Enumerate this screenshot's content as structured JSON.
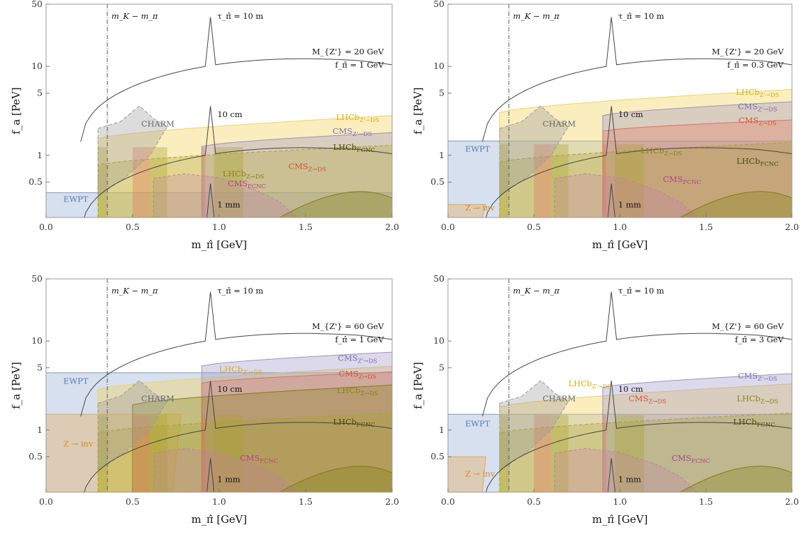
{
  "chart_data": [
    {
      "type": "area",
      "params": [
        "M_{Z'} = 20 GeV",
        "f_π̂ = 1 GeV"
      ],
      "xlabel": "m_π̂  [GeV]",
      "ylabel": "f_a  [PeV]",
      "xlim": [
        0,
        2
      ],
      "ylim": [
        0.2,
        50
      ],
      "yscale": "log",
      "xticks": [
        "0.0",
        "0.5",
        "1.0",
        "1.5",
        "2.0"
      ],
      "yticks": [
        "0.5",
        "1",
        "5",
        "10",
        "50"
      ],
      "annotations": {
        "mass_line": "m_K − m_π",
        "mass_line_x": 0.354,
        "tau_10m": "τ_π̂ = 10 m",
        "tau_10cm": "10 cm",
        "tau_1mm": "1 mm"
      },
      "regions": [
        {
          "name": "EWPT",
          "fa_max": 0.38,
          "label_x": 0.1,
          "label_y": 0.3
        },
        {
          "name": "CHARM",
          "label_x": 0.55,
          "label_y": 2.1
        },
        {
          "name": "LHCb_{Z'→DS}",
          "fa_max_at_2": 2.8,
          "label_x": 1.8,
          "label_y": 2.5
        },
        {
          "name": "CMS_{Z'→DS}",
          "fa_max_at_2": 1.8,
          "label_x": 1.77,
          "label_y": 1.75
        },
        {
          "name": "LHCb_{FCNC}",
          "fa_max_at_2": 1.3,
          "label_x": 1.78,
          "label_y": 1.15
        },
        {
          "name": "LHCb_{Z→DS}",
          "label_x": 1.02,
          "label_y": 0.58
        },
        {
          "name": "CMS_{Z→DS}",
          "label_x": 1.4,
          "label_y": 0.7
        },
        {
          "name": "CMS_{FCNC}",
          "label_x": 1.05,
          "label_y": 0.45
        }
      ]
    },
    {
      "type": "area",
      "params": [
        "M_{Z'} = 20 GeV",
        "f_π̂ = 0.3 GeV"
      ],
      "xlabel": "m_π̂  [GeV]",
      "ylabel": "f_a  [PeV]",
      "xlim": [
        0,
        2
      ],
      "ylim": [
        0.2,
        50
      ],
      "yscale": "log",
      "xticks": [
        "0.0",
        "0.5",
        "1.0",
        "1.5",
        "2.0"
      ],
      "yticks": [
        "0.5",
        "1",
        "5",
        "10",
        "50"
      ],
      "annotations": {
        "mass_line": "m_K − m_π",
        "mass_line_x": 0.354,
        "tau_10m": "τ_π̂ = 10 m",
        "tau_10cm": "10 cm",
        "tau_1mm": "1 mm"
      },
      "regions": [
        {
          "name": "EWPT",
          "fa_max": 1.45,
          "label_x": 0.1,
          "label_y": 1.1
        },
        {
          "name": "Z → inv",
          "fa_max": 0.28,
          "label_x": 0.1,
          "label_y": 0.24
        },
        {
          "name": "CHARM",
          "label_x": 0.55,
          "label_y": 2.1
        },
        {
          "name": "LHCb_{Z'→DS}",
          "fa_max_at_2": 5.5,
          "label_x": 1.8,
          "label_y": 4.8
        },
        {
          "name": "CMS_{Z'→DS}",
          "fa_max_at_2": 4.0,
          "label_x": 1.8,
          "label_y": 3.3
        },
        {
          "name": "CMS_{Z→DS}",
          "fa_max_at_2": 2.5,
          "label_x": 1.8,
          "label_y": 2.3
        },
        {
          "name": "LHCb_{Z→DS}",
          "label_x": 1.12,
          "label_y": 1.05
        },
        {
          "name": "LHCb_{FCNC}",
          "label_x": 1.8,
          "label_y": 0.8
        },
        {
          "name": "CMS_{FCNC}",
          "label_x": 1.25,
          "label_y": 0.5
        }
      ]
    },
    {
      "type": "area",
      "params": [
        "M_{Z'} = 60 GeV",
        "f_π̂ = 1 GeV"
      ],
      "xlabel": "m_π̂  [GeV]",
      "ylabel": "f_a  [PeV]",
      "xlim": [
        0,
        2
      ],
      "ylim": [
        0.2,
        50
      ],
      "yscale": "log",
      "xticks": [
        "0.0",
        "0.5",
        "1.0",
        "1.5",
        "2.0"
      ],
      "yticks": [
        "0.5",
        "1",
        "5",
        "10",
        "50"
      ],
      "annotations": {
        "mass_line": "m_K − m_π",
        "mass_line_x": 0.354,
        "tau_10m": "τ_π̂ = 10 m",
        "tau_10cm": "10 cm",
        "tau_1mm": "1 mm"
      },
      "regions": [
        {
          "name": "EWPT",
          "fa_max": 4.4,
          "label_x": 0.1,
          "label_y": 3.3
        },
        {
          "name": "Z → inv",
          "fa_max": 1.5,
          "label_x": 0.1,
          "label_y": 0.65
        },
        {
          "name": "CHARM",
          "label_x": 0.55,
          "label_y": 2.1
        },
        {
          "name": "LHCb_{Z'→DS}",
          "fa_max_at_2": 5.2,
          "label_x": 1.0,
          "label_y": 4.5
        },
        {
          "name": "CMS_{Z'→DS}",
          "fa_max_at_2": 7.5,
          "label_x": 1.8,
          "label_y": 6.0
        },
        {
          "name": "CMS_{Z→DS}",
          "fa_max_at_2": 4.5,
          "label_x": 1.8,
          "label_y": 4.0
        },
        {
          "name": "LHCb_{Z→DS}",
          "fa_max_at_2": 3.2,
          "label_x": 1.8,
          "label_y": 2.6
        },
        {
          "name": "LHCb_{FCNC}",
          "label_x": 1.78,
          "label_y": 1.15
        },
        {
          "name": "CMS_{FCNC}",
          "label_x": 1.12,
          "label_y": 0.45
        }
      ]
    },
    {
      "type": "area",
      "params": [
        "M_{Z'} = 60 GeV",
        "f_π̂ = 3 GeV"
      ],
      "xlabel": "m_π̂  [GeV]",
      "ylabel": "f_a  [PeV]",
      "xlim": [
        0,
        2
      ],
      "ylim": [
        0.2,
        50
      ],
      "yscale": "log",
      "xticks": [
        "0.0",
        "0.5",
        "1.0",
        "1.5",
        "2.0"
      ],
      "yticks": [
        "0.5",
        "1",
        "5",
        "10",
        "50"
      ],
      "annotations": {
        "mass_line": "m_K − m_π",
        "mass_line_x": 0.354,
        "tau_10m": "τ_π̂ = 10 m",
        "tau_10cm": "10 cm",
        "tau_1mm": "1 mm"
      },
      "regions": [
        {
          "name": "EWPT",
          "fa_max": 1.5,
          "label_x": 0.1,
          "label_y": 1.1
        },
        {
          "name": "Z → inv",
          "fa_max": 0.5,
          "label_x": 0.1,
          "label_y": 0.3
        },
        {
          "name": "CHARM",
          "label_x": 0.55,
          "label_y": 2.1
        },
        {
          "name": "CMS_{Z'→DS}",
          "fa_max_at_2": 4.3,
          "label_x": 1.8,
          "label_y": 3.8
        },
        {
          "name": "LHCb_{Z'→DS}",
          "fa_max_at_2": 3.3,
          "label_x": 0.7,
          "label_y": 3.1
        },
        {
          "name": "CMS_{Z→DS}",
          "label_x": 1.05,
          "label_y": 2.1
        },
        {
          "name": "LHCb_{Z→DS}",
          "label_x": 1.8,
          "label_y": 2.1
        },
        {
          "name": "LHCb_{FCNC}",
          "label_x": 1.78,
          "label_y": 1.15
        },
        {
          "name": "CMS_{FCNC}",
          "label_x": 1.3,
          "label_y": 0.45
        }
      ]
    }
  ]
}
